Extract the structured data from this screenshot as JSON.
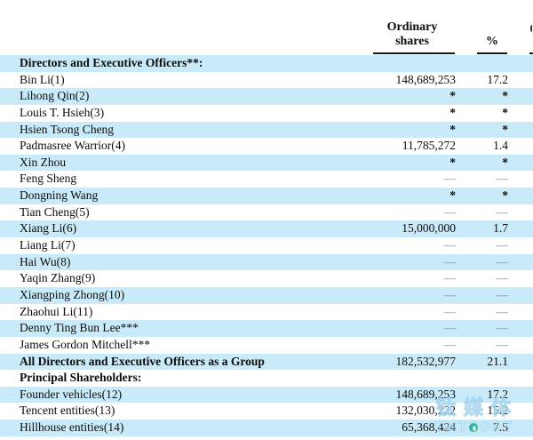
{
  "header": {
    "shares_col_line1": "Ordinary",
    "shares_col_line2": "shares",
    "pct_col": "%"
  },
  "rows": [
    {
      "label": "Directors and Executive Officers**:",
      "shares": "",
      "pct": "",
      "bold": true
    },
    {
      "label": "Bin Li(1)",
      "shares": "148,689,253",
      "pct": "17.2"
    },
    {
      "label": "Lihong Qin(2)",
      "shares": "*",
      "pct": "*"
    },
    {
      "label": "Louis T. Hsieh(3)",
      "shares": "*",
      "pct": "*"
    },
    {
      "label": "Hsien Tsong Cheng",
      "shares": "*",
      "pct": "*"
    },
    {
      "label": "Padmasree Warrior(4)",
      "shares": "11,785,272",
      "pct": "1.4"
    },
    {
      "label": "Xin Zhou",
      "shares": "*",
      "pct": "*"
    },
    {
      "label": "Feng Sheng",
      "shares": "—",
      "pct": "—"
    },
    {
      "label": "Dongning Wang",
      "shares": "*",
      "pct": "*"
    },
    {
      "label": "Tian Cheng(5)",
      "shares": "—",
      "pct": "—"
    },
    {
      "label": "Xiang Li(6)",
      "shares": "15,000,000",
      "pct": "1.7"
    },
    {
      "label": "Liang Li(7)",
      "shares": "—",
      "pct": "—"
    },
    {
      "label": "Hai Wu(8)",
      "shares": "—",
      "pct": "—"
    },
    {
      "label": "Yaqin Zhang(9)",
      "shares": "—",
      "pct": "—"
    },
    {
      "label": "Xiangping Zhong(10)",
      "shares": "—",
      "pct": "—"
    },
    {
      "label": "Zhaohui Li(11)",
      "shares": "—",
      "pct": "—"
    },
    {
      "label": "Denny Ting Bun Lee***",
      "shares": "—",
      "pct": "—"
    },
    {
      "label": "James Gordon Mitchell***",
      "shares": "—",
      "pct": "—"
    },
    {
      "label": "All Directors and Executive Officers as a Group",
      "shares": "182,532,977",
      "pct": "21.1",
      "bold": true
    },
    {
      "label": "Principal Shareholders:",
      "shares": "",
      "pct": "",
      "bold": true
    },
    {
      "label": "Founder vehicles(12)",
      "shares": "148,689,253",
      "pct": "17.2"
    },
    {
      "label": "Tencent entities(13)",
      "shares": "132,030,222",
      "pct": "15.2"
    },
    {
      "label": "Hillhouse entities(14)",
      "shares": "65,368,424",
      "pct": "7.5"
    }
  ],
  "watermark": {
    "cjk": "钛媒体",
    "latin": "TMTPOST"
  },
  "colors": {
    "row_highlight": "#c9ebf9",
    "rule": "#161616",
    "dash": "#848d94",
    "watermark_stroke": "#9ed0ea",
    "watermark_icon": "#35b3a5"
  }
}
